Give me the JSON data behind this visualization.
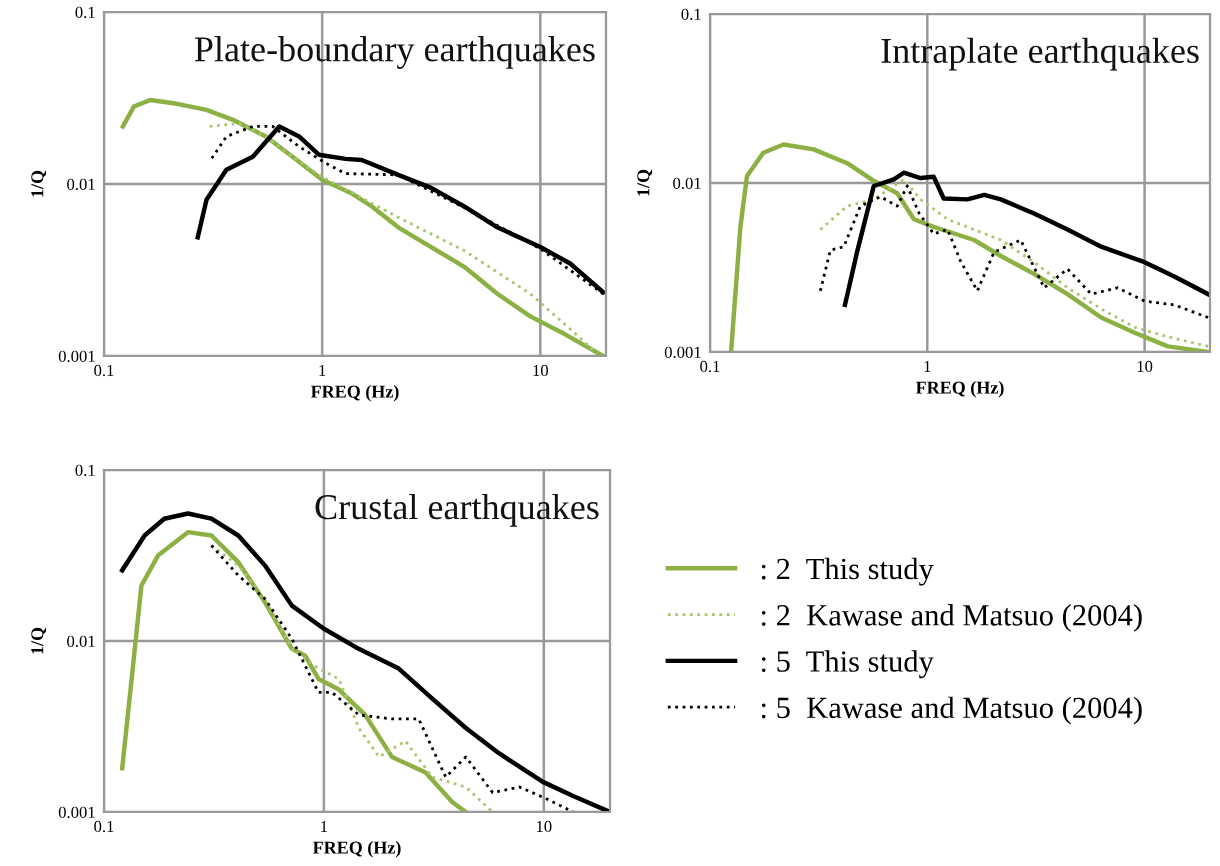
{
  "chart_data": [
    {
      "type": "line",
      "title": "Plate-boundary earthquakes",
      "xlabel": "FREQ (Hz)",
      "ylabel": "1/Q",
      "log": "xy",
      "xlim": [
        0.1,
        20
      ],
      "ylim": [
        0.001,
        0.1
      ],
      "xticks": [
        0.1,
        1,
        10
      ],
      "yticks": [
        0.001,
        0.01,
        0.1
      ],
      "grid": true,
      "legend": false,
      "series": [
        {
          "color": "#8db045",
          "line_style": "solid",
          "x": [
            0.122,
            0.137,
            0.163,
            0.208,
            0.295,
            0.39,
            0.552,
            0.731,
            1,
            1.37,
            1.69,
            2.23,
            3.16,
            4.48,
            6.35,
            9.0,
            12.8,
            19.4
          ],
          "values": [
            0.0216,
            0.0282,
            0.0308,
            0.0295,
            0.027,
            0.0236,
            0.0189,
            0.0144,
            0.0106,
            0.0088,
            0.0074,
            0.0056,
            0.0043,
            0.0033,
            0.0023,
            0.0017,
            0.00135,
            0.001
          ]
        },
        {
          "color": "#a8c66c",
          "line_style": "dotted",
          "x": [
            0.305,
            0.418,
            0.552,
            0.731,
            1,
            2.23,
            4.48,
            9,
            15.7,
            18.1
          ],
          "values": [
            0.0216,
            0.0225,
            0.0189,
            0.0144,
            0.011,
            0.0064,
            0.0041,
            0.0023,
            0.00123,
            0.00103
          ]
        },
        {
          "color": "#000000",
          "line_style": "solid",
          "x": [
            0.269,
            0.295,
            0.364,
            0.481,
            0.636,
            0.784,
            0.965,
            1.28,
            1.52,
            2.23,
            3.16,
            4.48,
            6.35,
            10,
            13.7,
            19.4
          ],
          "values": [
            0.0049,
            0.0081,
            0.0121,
            0.0144,
            0.0216,
            0.0189,
            0.0148,
            0.014,
            0.0138,
            0.0113,
            0.0095,
            0.0074,
            0.0056,
            0.0043,
            0.00345,
            0.00235
          ]
        },
        {
          "color": "#000000",
          "line_style": "dotted",
          "x": [
            0.312,
            0.364,
            0.481,
            0.593,
            0.784,
            1.04,
            1.28,
            2.23,
            4.48,
            10,
            19.4
          ],
          "values": [
            0.0141,
            0.0189,
            0.0216,
            0.0216,
            0.0165,
            0.0132,
            0.0115,
            0.0113,
            0.0073,
            0.0042,
            0.0023
          ]
        }
      ]
    },
    {
      "type": "line",
      "title": "Intraplate earthquakes",
      "xlabel": "FREQ (Hz)",
      "ylabel": "1/Q",
      "log": "xy",
      "xlim": [
        0.1,
        20
      ],
      "ylim": [
        0.001,
        0.1
      ],
      "xticks": [
        0.1,
        1,
        10
      ],
      "yticks": [
        0.001,
        0.01,
        0.1
      ],
      "grid": true,
      "legend": false,
      "series": [
        {
          "color": "#8db045",
          "line_style": "solid",
          "x": [
            0.125,
            0.138,
            0.148,
            0.176,
            0.218,
            0.3,
            0.428,
            0.567,
            0.727,
            0.868,
            1.07,
            1.64,
            2.18,
            3.1,
            4.42,
            6.31,
            9,
            12.8,
            19.6
          ],
          "values": [
            0.001,
            0.0055,
            0.011,
            0.0151,
            0.0169,
            0.0158,
            0.0131,
            0.0103,
            0.0087,
            0.0061,
            0.0055,
            0.0046,
            0.0037,
            0.0029,
            0.0022,
            0.0016,
            0.0013,
            0.00108,
            0.001
          ]
        },
        {
          "color": "#a8c66c",
          "line_style": "dotted",
          "x": [
            0.322,
            0.428,
            0.567,
            0.78,
            0.93,
            1.24,
            1.64,
            2.18,
            3.1,
            4.42,
            6.31,
            9,
            12.8,
            19.6
          ],
          "values": [
            0.0053,
            0.0073,
            0.008,
            0.0105,
            0.008,
            0.0061,
            0.0053,
            0.0046,
            0.0034,
            0.0024,
            0.0018,
            0.0014,
            0.00123,
            0.00108
          ]
        },
        {
          "color": "#000000",
          "line_style": "solid",
          "x": [
            0.418,
            0.475,
            0.567,
            0.702,
            0.78,
            0.93,
            1.07,
            1.19,
            1.53,
            1.83,
            2.18,
            3.1,
            4.42,
            6.31,
            10,
            13.7,
            19.6
          ],
          "values": [
            0.0019,
            0.0039,
            0.0096,
            0.0105,
            0.0115,
            0.0107,
            0.0109,
            0.0081,
            0.008,
            0.0085,
            0.008,
            0.0066,
            0.0053,
            0.0042,
            0.0034,
            0.0028,
            0.0022
          ]
        },
        {
          "color": "#000000",
          "line_style": "dotted",
          "x": [
            0.322,
            0.358,
            0.413,
            0.492,
            0.609,
            0.727,
            0.809,
            0.918,
            1.07,
            1.24,
            1.43,
            1.7,
            2.03,
            2.69,
            3.45,
            4.42,
            5.68,
            7.53,
            10,
            13.7,
            19.6
          ],
          "values": [
            0.0023,
            0.004,
            0.0042,
            0.0073,
            0.0083,
            0.0073,
            0.0096,
            0.0066,
            0.005,
            0.0053,
            0.0034,
            0.0023,
            0.0039,
            0.0046,
            0.0024,
            0.0031,
            0.0022,
            0.0024,
            0.002,
            0.0019,
            0.0016
          ]
        }
      ]
    },
    {
      "type": "line",
      "title": "Crustal earthquakes",
      "xlabel": "FREQ (Hz)",
      "ylabel": "1/Q",
      "log": "xy",
      "xlim": [
        0.1,
        20
      ],
      "ylim": [
        0.001,
        0.1
      ],
      "xticks": [
        0.1,
        1,
        10
      ],
      "yticks": [
        0.001,
        0.01,
        0.1
      ],
      "grid": true,
      "legend": "right",
      "series": [
        {
          "name": ": 2  This study",
          "color": "#8db045",
          "line_style": "solid",
          "x": [
            0.121,
            0.133,
            0.148,
            0.176,
            0.241,
            0.308,
            0.408,
            0.54,
            0.715,
            0.822,
            0.945,
            1.17,
            1.54,
            2.04,
            2.9,
            3.84,
            4.42
          ],
          "values": [
            0.0018,
            0.0057,
            0.0211,
            0.0316,
            0.0433,
            0.0414,
            0.0289,
            0.0168,
            0.009,
            0.0082,
            0.006,
            0.0052,
            0.0037,
            0.0021,
            0.0017,
            0.00114,
            0.001
          ]
        },
        {
          "name": ": 2  Kawase and Matsuo (2004)",
          "color": "#a8c66c",
          "line_style": "dotted",
          "x": [
            0.308,
            0.408,
            0.54,
            0.715,
            0.945,
            1.17,
            1.44,
            1.78,
            2.35,
            3.11,
            4.42,
            5.85
          ],
          "values": [
            0.0362,
            0.0276,
            0.0176,
            0.009,
            0.0069,
            0.006,
            0.0031,
            0.0021,
            0.0026,
            0.0016,
            0.0014,
            0.001
          ]
        },
        {
          "name": ": 5  This study",
          "color": "#000000",
          "line_style": "solid",
          "x": [
            0.121,
            0.153,
            0.188,
            0.241,
            0.308,
            0.408,
            0.54,
            0.715,
            1,
            1.44,
            2.19,
            3.11,
            4.42,
            6.27,
            9.9,
            13.6,
            20
          ],
          "values": [
            0.0259,
            0.0414,
            0.0519,
            0.0557,
            0.0519,
            0.0414,
            0.0276,
            0.0161,
            0.0118,
            0.009,
            0.0069,
            0.0046,
            0.0031,
            0.0022,
            0.0015,
            0.00124,
            0.001
          ]
        },
        {
          "name": ": 5  Kawase and Matsuo (2004)",
          "color": "#000000",
          "line_style": "dotted",
          "x": [
            0.308,
            0.408,
            0.54,
            0.715,
            0.945,
            1.09,
            1.44,
            2.04,
            2.7,
            3.58,
            4.42,
            5.85,
            7.75,
            10.2,
            13.6
          ],
          "values": [
            0.0362,
            0.0242,
            0.0176,
            0.0103,
            0.005,
            0.005,
            0.0037,
            0.0035,
            0.0035,
            0.0016,
            0.0021,
            0.0013,
            0.0014,
            0.0012,
            0.001
          ]
        }
      ]
    }
  ]
}
